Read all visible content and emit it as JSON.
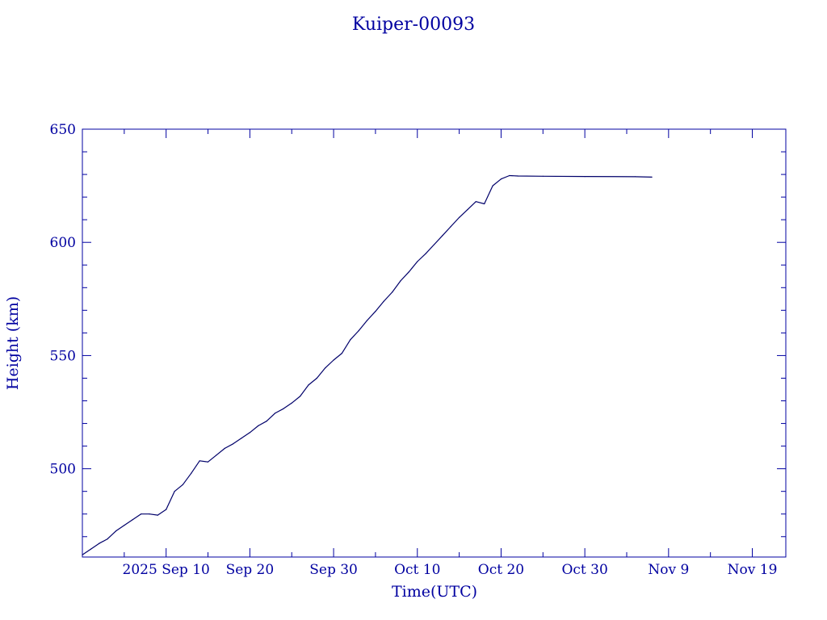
{
  "chart_data": {
    "type": "line",
    "title": "Kuiper-00093",
    "xlabel": "Time(UTC)",
    "ylabel": "Height (km)",
    "ylim": [
      461,
      650
    ],
    "xlim": [
      "2025-08-31",
      "2025-11-23"
    ],
    "yticks": [
      500,
      550,
      600,
      650
    ],
    "xticks": [
      {
        "date": "2025-09-10",
        "label": "2025 Sep 10"
      },
      {
        "date": "2025-09-20",
        "label": "Sep 20"
      },
      {
        "date": "2025-09-30",
        "label": "Sep 30"
      },
      {
        "date": "2025-10-10",
        "label": "Oct 10"
      },
      {
        "date": "2025-10-20",
        "label": "Oct 20"
      },
      {
        "date": "2025-10-30",
        "label": "Oct 30"
      },
      {
        "date": "2025-11-09",
        "label": "Nov  9"
      },
      {
        "date": "2025-11-19",
        "label": "Nov 19"
      }
    ],
    "grid": false,
    "colors": {
      "axis": "#0000a0",
      "line": "#00006a",
      "background": "#ffffff"
    },
    "series": [
      {
        "x": [
          "2025-08-31",
          "2025-09-01",
          "2025-09-02",
          "2025-09-03",
          "2025-09-04",
          "2025-09-05",
          "2025-09-06",
          "2025-09-07",
          "2025-09-08",
          "2025-09-09",
          "2025-09-10",
          "2025-09-11",
          "2025-09-12",
          "2025-09-13",
          "2025-09-14",
          "2025-09-15",
          "2025-09-16",
          "2025-09-17",
          "2025-09-18",
          "2025-09-19",
          "2025-09-20",
          "2025-09-21",
          "2025-09-22",
          "2025-09-23",
          "2025-09-24",
          "2025-09-25",
          "2025-09-26",
          "2025-09-27",
          "2025-09-28",
          "2025-09-29",
          "2025-09-30",
          "2025-10-01",
          "2025-10-02",
          "2025-10-03",
          "2025-10-04",
          "2025-10-05",
          "2025-10-06",
          "2025-10-07",
          "2025-10-08",
          "2025-10-09",
          "2025-10-10",
          "2025-10-11",
          "2025-10-12",
          "2025-10-13",
          "2025-10-14",
          "2025-10-15",
          "2025-10-16",
          "2025-10-17",
          "2025-10-18",
          "2025-10-19",
          "2025-10-20",
          "2025-10-21",
          "2025-10-22",
          "2025-10-25",
          "2025-10-30",
          "2025-11-05",
          "2025-11-07"
        ],
        "y": [
          462,
          464.5,
          467,
          469,
          472.5,
          475,
          477.5,
          480,
          480,
          479.5,
          482,
          490,
          493,
          498,
          503.5,
          503,
          506,
          509,
          511,
          513.5,
          516,
          519,
          521,
          524.5,
          526.5,
          529,
          532,
          537,
          540,
          544.5,
          548,
          551,
          557,
          561,
          565.5,
          569.5,
          574,
          578,
          583,
          587,
          591.5,
          595,
          599,
          603,
          607,
          611,
          614.5,
          618,
          617,
          625,
          628,
          629.5,
          629.3,
          629.2,
          629.1,
          629.0,
          628.8
        ]
      }
    ]
  }
}
